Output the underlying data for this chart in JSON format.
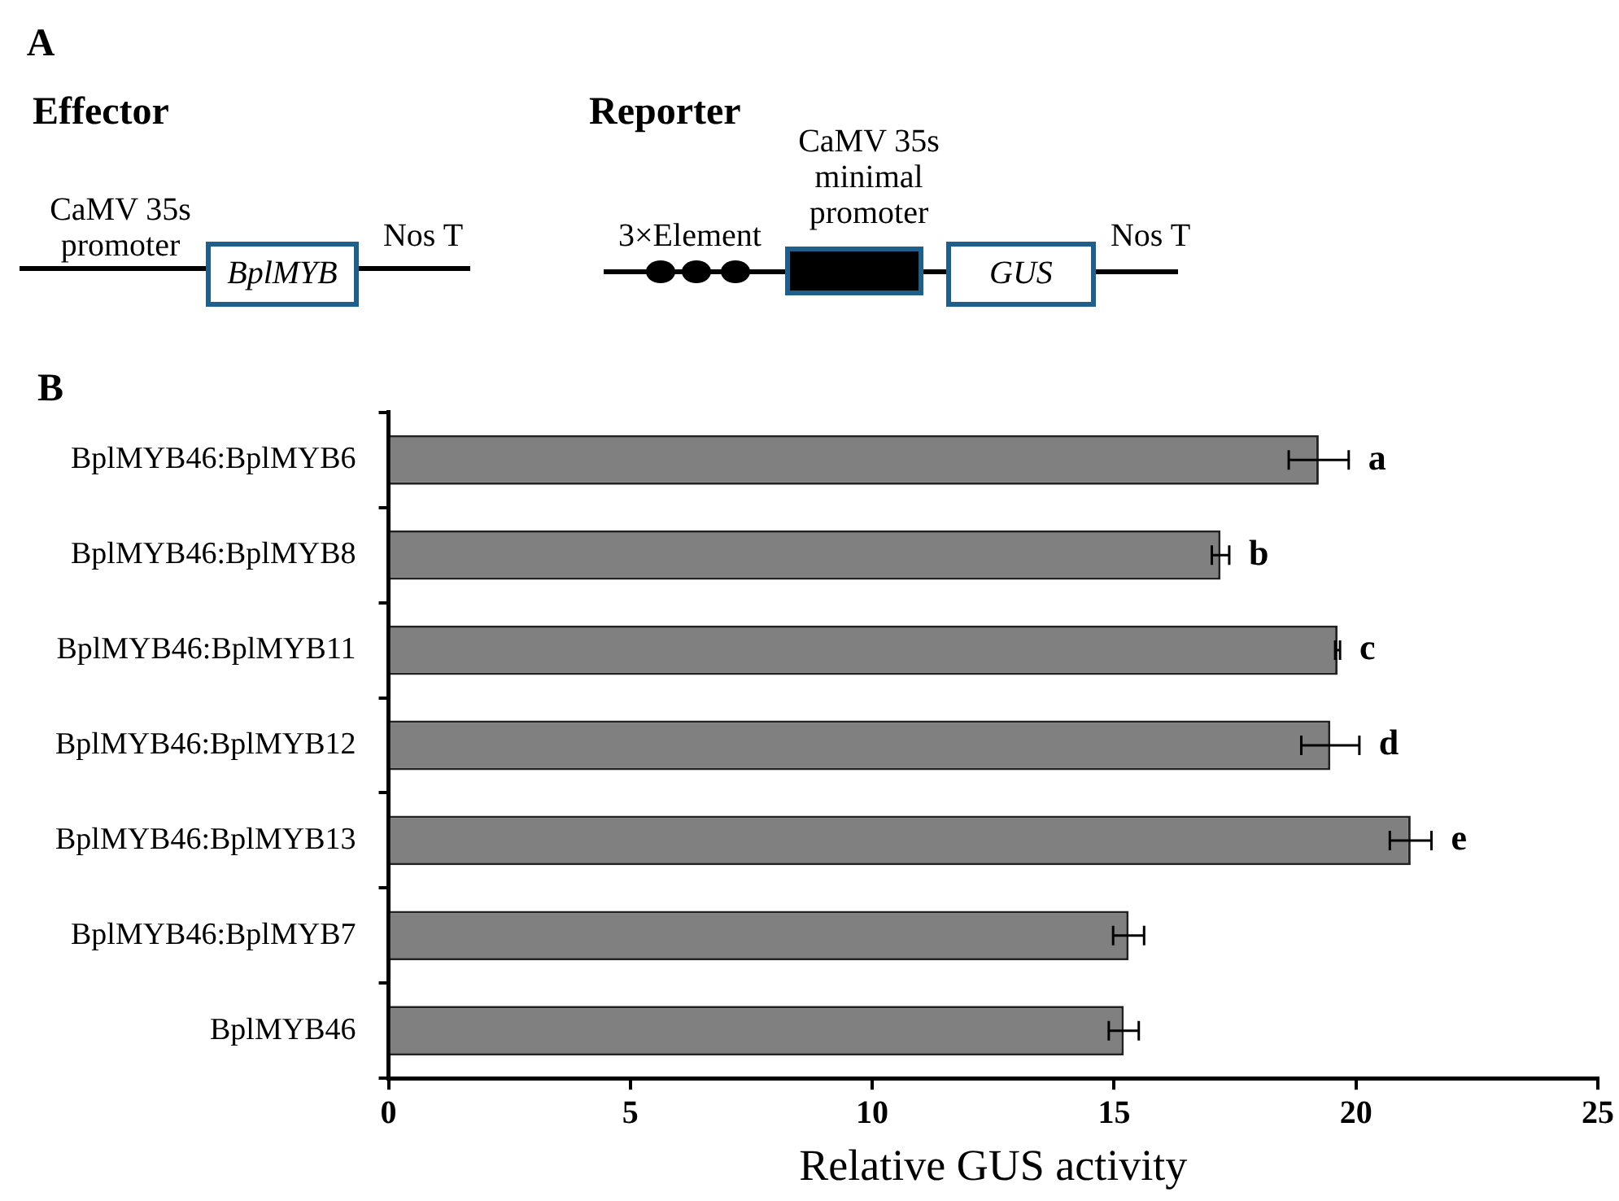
{
  "chart_data": {
    "type": "bar",
    "orientation": "horizontal",
    "xlabel": "Relative GUS activity",
    "categories": [
      "BplMYB46:BplMYB6",
      "BplMYB46:BplMYB8",
      "BplMYB46:BplMYB11",
      "BplMYB46:BplMYB12",
      "BplMYB46:BplMYB13",
      "BplMYB46:BplMYB7",
      "BplMYB46"
    ],
    "values": [
      19.23,
      17.2,
      19.62,
      19.47,
      21.13,
      15.3,
      15.2
    ],
    "errors": [
      0.62,
      0.18,
      0.05,
      0.6,
      0.43,
      0.32,
      0.31
    ],
    "color": "#808080",
    "xlim": [
      0,
      25
    ],
    "xticks": [
      0,
      5,
      10,
      15,
      20,
      25
    ],
    "grid": false,
    "legend": false,
    "annotations": [
      "a",
      "b",
      "c",
      "d",
      "e",
      "A",
      "Effector",
      "CaMV 35s promoter",
      "BplMYB",
      "Nos T",
      "Reporter",
      "3×Element",
      "CaMV 35s minimal promoter",
      "GUS",
      "Nos T",
      "B"
    ]
  }
}
